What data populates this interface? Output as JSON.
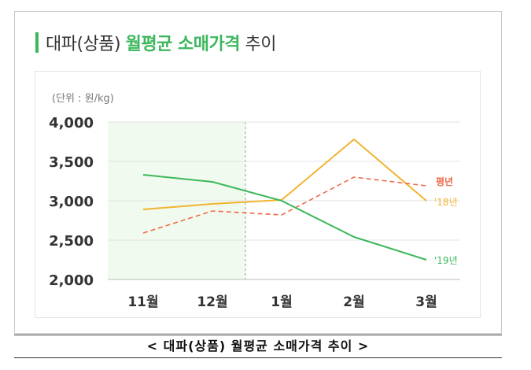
{
  "title": {
    "prefix": "대파(상품) ",
    "highlight": "월평균 소매가격",
    "suffix": " 추이"
  },
  "caption": "< 대파(상품) 월평균 소매가격 추이 >",
  "colors": {
    "accent": "#3cb75c",
    "series_2019": "#3cb75c",
    "series_2018": "#f0b42f",
    "series_avg": "#ef6a4a",
    "highlight_bg": "#f1faee"
  },
  "chart_data": {
    "type": "line",
    "unit_label": "(단위 : 원/kg)",
    "categories": [
      "11월",
      "12월",
      "1월",
      "2월",
      "3월"
    ],
    "ylim": [
      2000,
      4000
    ],
    "yticks": [
      "4,000",
      "3,500",
      "3,000",
      "2,500",
      "2,000"
    ],
    "ytick_values": [
      4000,
      3500,
      3000,
      2500,
      2000
    ],
    "highlight_range": [
      "11월",
      "12월"
    ],
    "series": [
      {
        "name": "'19년",
        "style": "solid",
        "color": "#3cb75c",
        "values": [
          3330,
          3240,
          3000,
          2540,
          2250
        ]
      },
      {
        "name": "'18년",
        "style": "solid",
        "color": "#f0b42f",
        "values": [
          2890,
          2960,
          3010,
          3780,
          3000
        ]
      },
      {
        "name": "평년",
        "style": "dashed",
        "color": "#ef6a4a",
        "values": [
          2590,
          2870,
          2820,
          3300,
          3190
        ]
      }
    ]
  }
}
